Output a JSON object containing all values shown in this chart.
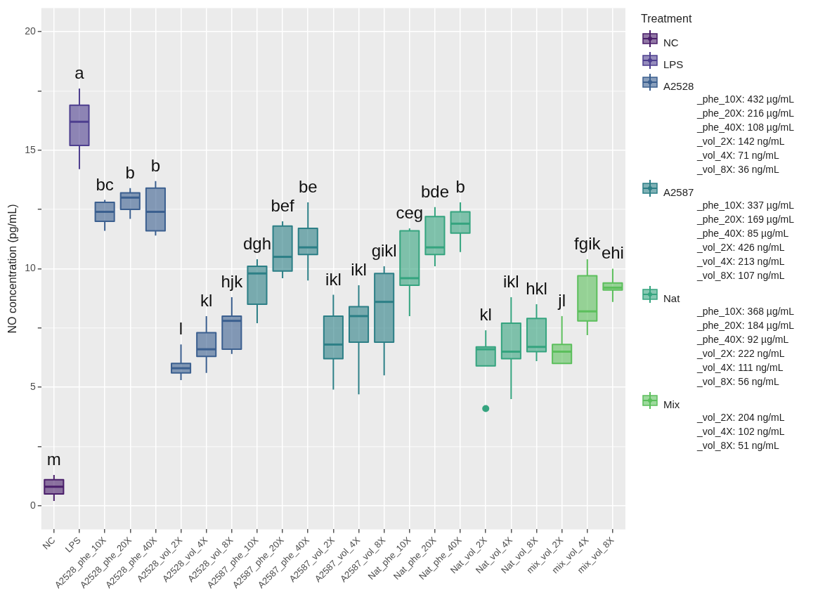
{
  "chart_data": {
    "type": "box",
    "ylabel": "NO concentration (pg/mL)",
    "legend_title": "Treatment",
    "legend": "right",
    "grid": true,
    "categories": [
      "NC",
      "LPS",
      "A2528_phe_10X",
      "A2528_phe_20X",
      "A2528_phe_40X",
      "A2528_vol_2X",
      "A2528_vol_4X",
      "A2528_vol_8X",
      "A2587_phe_10X",
      "A2587_phe_20X",
      "A2587_phe_40X",
      "A2587_vol_2X",
      "A2587_vol_4X",
      "A2587_vol_8X",
      "Nat_phe_10X",
      "Nat_phe_20X",
      "Nat_phe_40X",
      "Nat_vol_2X",
      "Nat_vol_4X",
      "Nat_vol_8X",
      "mix_vol_2X",
      "mix_vol_4X",
      "mix_vol_8X"
    ],
    "ylim": [
      -1,
      21
    ],
    "yticks": [
      0,
      {
        "value": 2.5,
        "label": null
      },
      5,
      {
        "value": 7.5,
        "label": null
      },
      10,
      {
        "value": 12.5,
        "label": null
      },
      15,
      {
        "value": 17.5,
        "label": null
      },
      20
    ],
    "series": [
      {
        "name": "NC",
        "color": "#4a1e6a",
        "boxes": [
          {
            "low": 0.2,
            "q1": 0.5,
            "median": 0.8,
            "q3": 1.1,
            "high": 1.3
          },
          null,
          null,
          null,
          null,
          null,
          null,
          null,
          null,
          null,
          null,
          null,
          null,
          null,
          null,
          null,
          null,
          null,
          null,
          null,
          null,
          null,
          null
        ]
      },
      {
        "name": "LPS",
        "color": "#4e3f8f",
        "boxes": [
          null,
          {
            "low": 14.2,
            "q1": 15.2,
            "median": 16.2,
            "q3": 16.9,
            "high": 17.6
          },
          null,
          null,
          null,
          null,
          null,
          null,
          null,
          null,
          null,
          null,
          null,
          null,
          null,
          null,
          null,
          null,
          null,
          null,
          null,
          null,
          null
        ]
      },
      {
        "name": "A2528\n_phe_10X: 432 µg/mL\n_phe_20X: 216 µg/mL\n_phe_40X: 108 µg/mL\n_vol_2X: 142 ng/mL\n_vol_4X: 71 ng/mL\n_vol_8X: 36 ng/mL",
        "color": "#3b5f8f",
        "boxes": [
          null,
          null,
          {
            "low": 11.6,
            "q1": 12.0,
            "median": 12.4,
            "q3": 12.8,
            "high": 12.9
          },
          {
            "low": 12.1,
            "q1": 12.5,
            "median": 13.0,
            "q3": 13.2,
            "high": 13.4
          },
          {
            "low": 11.4,
            "q1": 11.6,
            "median": 12.4,
            "q3": 13.4,
            "high": 13.7
          },
          {
            "low": 5.3,
            "q1": 5.6,
            "median": 5.8,
            "q3": 6.0,
            "high": 6.8
          },
          {
            "low": 5.6,
            "q1": 6.3,
            "median": 6.6,
            "q3": 7.3,
            "high": 8.0
          },
          {
            "low": 6.4,
            "q1": 6.6,
            "median": 7.8,
            "q3": 8.0,
            "high": 8.8
          },
          null,
          null,
          null,
          null,
          null,
          null,
          null,
          null,
          null,
          null,
          null,
          null,
          null,
          null,
          null
        ]
      },
      {
        "name": "A2587\n_phe_10X: 337 µg/mL\n_phe_20X: 169 µg/mL\n_phe_40X: 85 µg/mL\n_vol_2X: 426 ng/mL\n_vol_4X: 213 ng/mL\n_vol_8X: 107 ng/mL",
        "color": "#2c7f86",
        "boxes": [
          null,
          null,
          null,
          null,
          null,
          null,
          null,
          null,
          {
            "low": 7.7,
            "q1": 8.5,
            "median": 9.8,
            "q3": 10.1,
            "high": 10.4
          },
          {
            "low": 9.6,
            "q1": 9.9,
            "median": 10.5,
            "q3": 11.8,
            "high": 12.0
          },
          {
            "low": 9.5,
            "q1": 10.6,
            "median": 10.9,
            "q3": 11.7,
            "high": 12.8
          },
          {
            "low": 4.9,
            "q1": 6.2,
            "median": 6.8,
            "q3": 8.0,
            "high": 8.9
          },
          {
            "low": 4.7,
            "q1": 6.9,
            "median": 8.0,
            "q3": 8.4,
            "high": 9.3
          },
          {
            "low": 5.5,
            "q1": 6.9,
            "median": 8.6,
            "q3": 9.8,
            "high": 10.1
          },
          null,
          null,
          null,
          null,
          null,
          null,
          null,
          null,
          null
        ]
      },
      {
        "name": "Nat\n_phe_10X: 368 µg/mL\n_phe_20X: 184 µg/mL\n_phe_40X: 92 µg/mL\n_vol_2X: 222 ng/mL\n_vol_4X: 111 ng/mL\n_vol_8X: 56 ng/mL",
        "color": "#35a47f",
        "boxes": [
          null,
          null,
          null,
          null,
          null,
          null,
          null,
          null,
          null,
          null,
          null,
          null,
          null,
          null,
          {
            "low": 8.0,
            "q1": 9.3,
            "median": 9.6,
            "q3": 11.6,
            "high": 11.7
          },
          {
            "low": 10.1,
            "q1": 10.6,
            "median": 10.9,
            "q3": 12.2,
            "high": 12.6
          },
          {
            "low": 10.7,
            "q1": 11.5,
            "median": 11.9,
            "q3": 12.4,
            "high": 12.8
          },
          {
            "low": 5.9,
            "q1": 5.9,
            "median": 6.6,
            "q3": 6.7,
            "high": 7.4,
            "outliers": [
              4.1
            ]
          },
          {
            "low": 4.5,
            "q1": 6.2,
            "median": 6.5,
            "q3": 7.7,
            "high": 8.8
          },
          {
            "low": 6.1,
            "q1": 6.5,
            "median": 6.7,
            "q3": 7.9,
            "high": 8.5
          },
          null,
          null,
          null
        ]
      },
      {
        "name": "Mix\n_vol_2X: 204 ng/mL\n_vol_4X: 102 ng/mL\n_vol_8X: 51 ng/mL",
        "color": "#5cbf5c",
        "boxes": [
          null,
          null,
          null,
          null,
          null,
          null,
          null,
          null,
          null,
          null,
          null,
          null,
          null,
          null,
          null,
          null,
          null,
          null,
          null,
          null,
          {
            "low": 6.0,
            "q1": 6.0,
            "median": 6.5,
            "q3": 6.8,
            "high": 8.0
          },
          {
            "low": 7.2,
            "q1": 7.8,
            "median": 8.2,
            "q3": 9.7,
            "high": 10.4
          },
          {
            "low": 8.6,
            "q1": 9.1,
            "median": 9.2,
            "q3": 9.4,
            "high": 10.0
          }
        ]
      }
    ],
    "annotations": [
      {
        "text": "m",
        "x": "NC",
        "y": 1.3
      },
      {
        "text": "a",
        "x": "LPS",
        "y": 17.6
      },
      {
        "text": "bc",
        "x": "A2528_phe_10X",
        "y": 12.9
      },
      {
        "text": "b",
        "x": "A2528_phe_20X",
        "y": 13.4
      },
      {
        "text": "b",
        "x": "A2528_phe_40X",
        "y": 13.7
      },
      {
        "text": "l",
        "x": "A2528_vol_2X",
        "y": 6.8
      },
      {
        "text": "kl",
        "x": "A2528_vol_4X",
        "y": 8.0
      },
      {
        "text": "hjk",
        "x": "A2528_vol_8X",
        "y": 8.8
      },
      {
        "text": "dgh",
        "x": "A2587_phe_10X",
        "y": 10.4
      },
      {
        "text": "bef",
        "x": "A2587_phe_20X",
        "y": 12.0
      },
      {
        "text": "be",
        "x": "A2587_phe_40X",
        "y": 12.8
      },
      {
        "text": "ikl",
        "x": "A2587_vol_2X",
        "y": 8.9
      },
      {
        "text": "ikl",
        "x": "A2587_vol_4X",
        "y": 9.3
      },
      {
        "text": "gikl",
        "x": "A2587_vol_8X",
        "y": 10.1
      },
      {
        "text": "ceg",
        "x": "Nat_phe_10X",
        "y": 11.7
      },
      {
        "text": "bde",
        "x": "Nat_phe_20X",
        "y": 12.6
      },
      {
        "text": "b",
        "x": "Nat_phe_40X",
        "y": 12.8
      },
      {
        "text": "kl",
        "x": "Nat_vol_2X",
        "y": 7.4
      },
      {
        "text": "ikl",
        "x": "Nat_vol_4X",
        "y": 8.8
      },
      {
        "text": "hkl",
        "x": "Nat_vol_8X",
        "y": 8.5
      },
      {
        "text": "jl",
        "x": "mix_vol_2X",
        "y": 8.0
      },
      {
        "text": "fgik",
        "x": "mix_vol_4X",
        "y": 10.4
      },
      {
        "text": "ehi",
        "x": "mix_vol_8X",
        "y": 10.0
      }
    ]
  }
}
